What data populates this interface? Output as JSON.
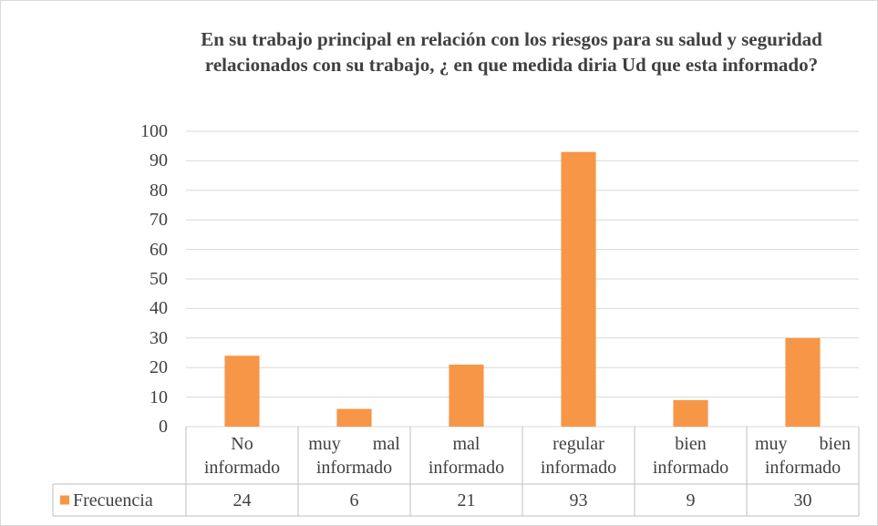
{
  "chart_data": {
    "type": "bar",
    "title": "En su trabajo principal en relación con los riesgos para su salud y seguridad relacionados con su trabajo, ¿ en que medida diria Ud que esta informado?",
    "categories": [
      "No informado",
      "muy mal informado",
      "mal informado",
      "regular informado",
      "bien informado",
      "muy bien informado"
    ],
    "series": [
      {
        "name": "Frecuencia",
        "color": "#f79646",
        "values": [
          24,
          6,
          21,
          93,
          9,
          30
        ]
      }
    ],
    "ylim": [
      0,
      100
    ],
    "yticks": [
      0,
      10,
      20,
      30,
      40,
      50,
      60,
      70,
      80,
      90,
      100
    ],
    "grid": true
  }
}
